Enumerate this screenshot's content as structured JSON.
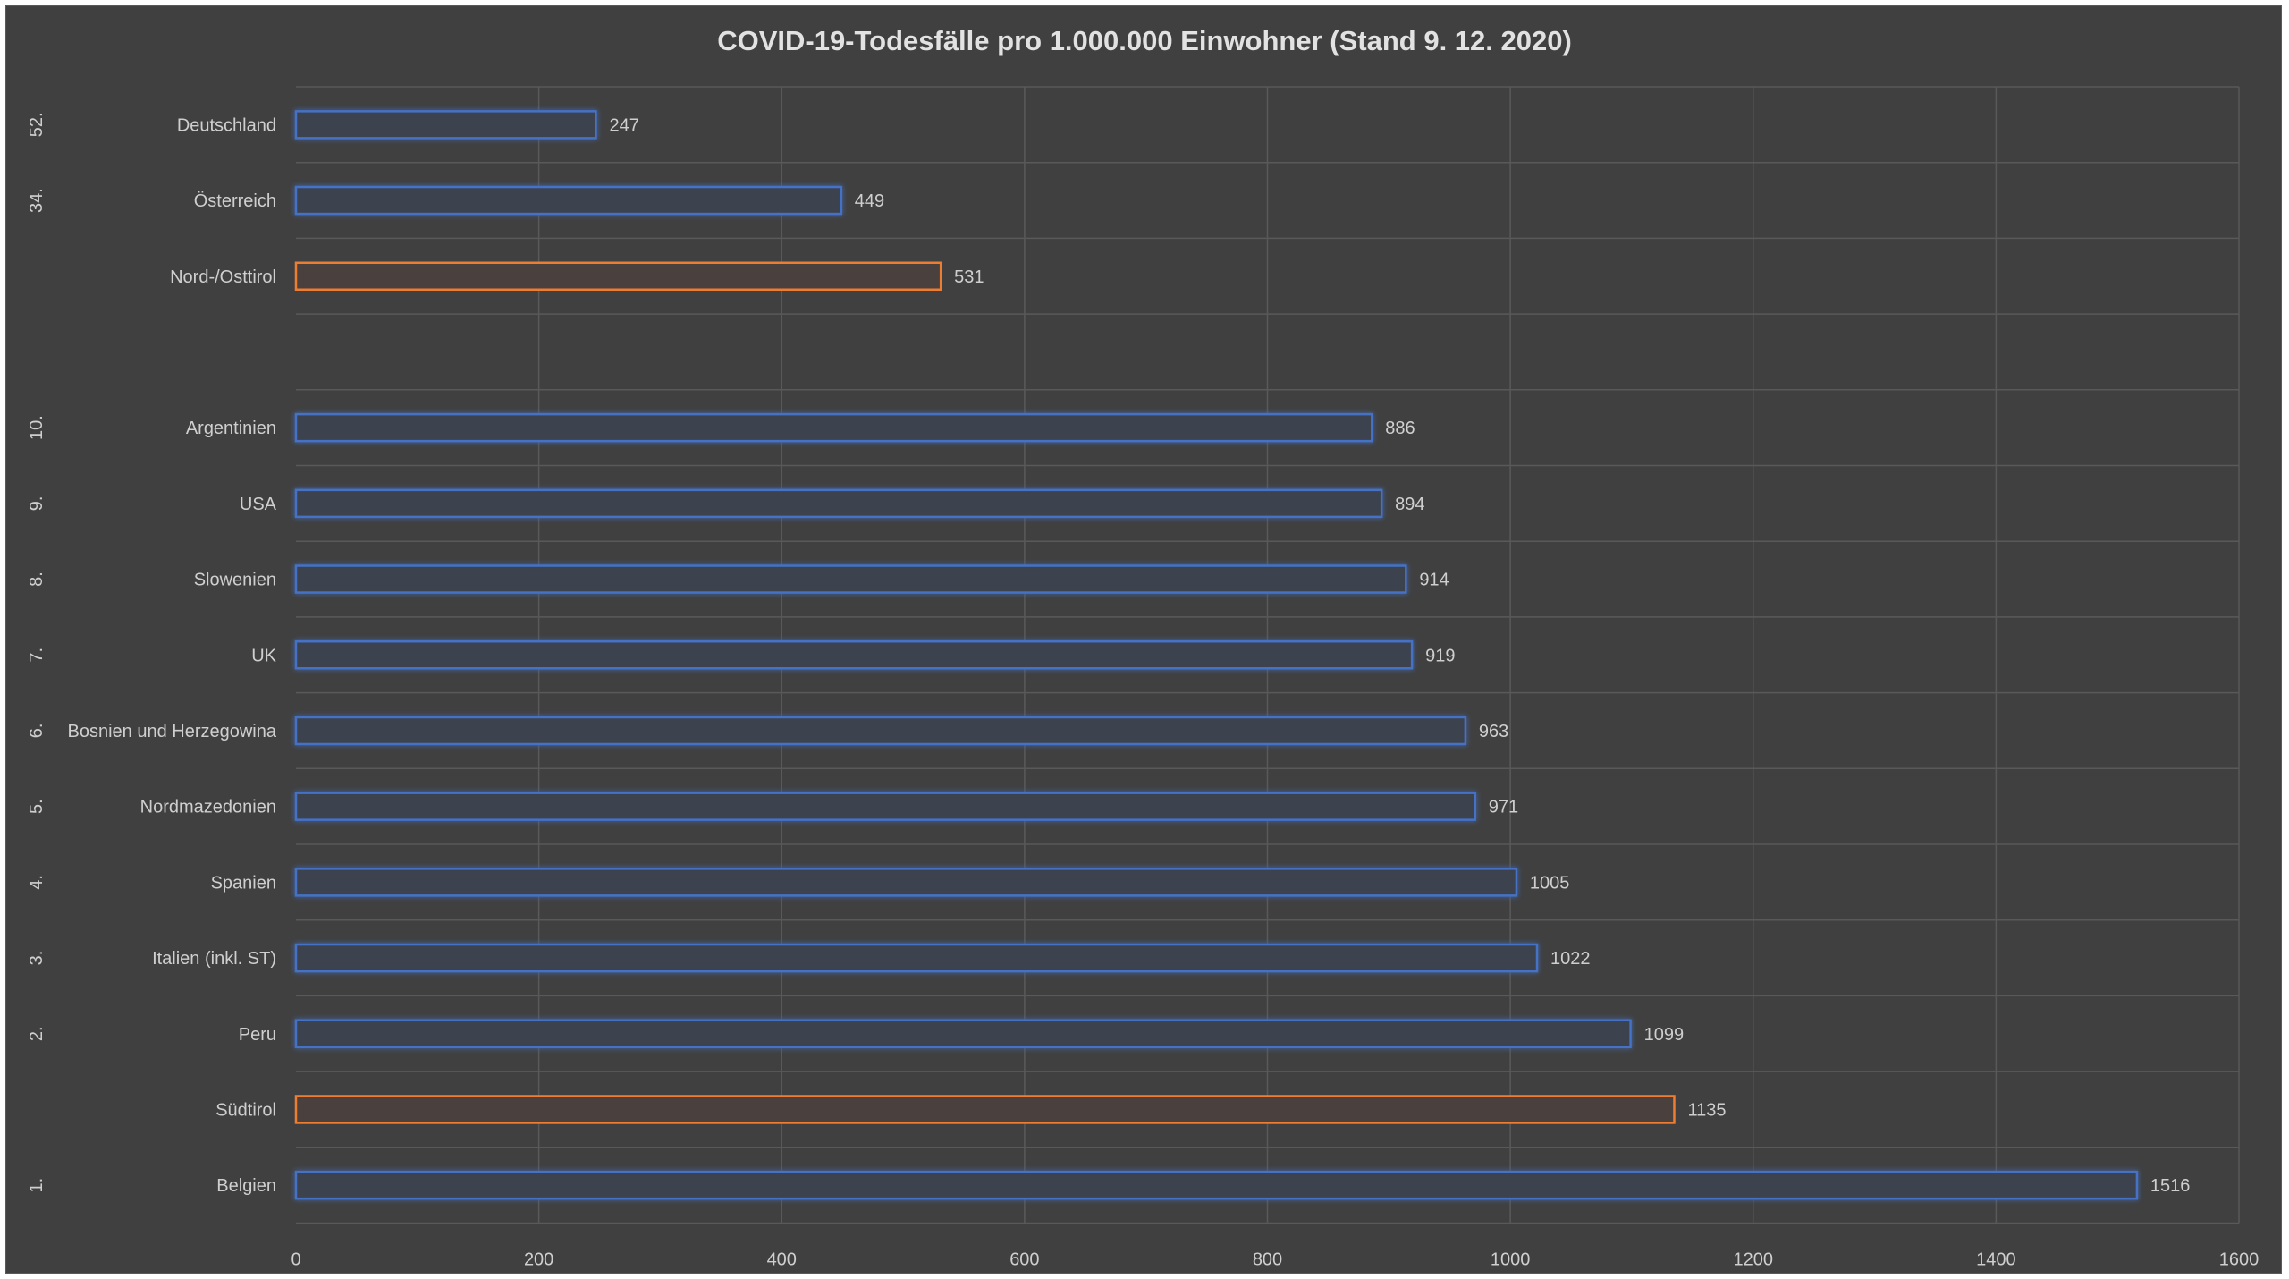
{
  "chart_data": {
    "type": "bar",
    "orientation": "horizontal",
    "title": "COVID-19-Todesfälle pro 1.000.000 Einwohner (Stand 9. 12. 2020)",
    "xlabel": "",
    "ylabel": "",
    "xlim": [
      0,
      1600
    ],
    "xticks": [
      0,
      200,
      400,
      600,
      800,
      1000,
      1200,
      1400,
      1600
    ],
    "grid": true,
    "legend": "none",
    "rows": [
      {
        "rank": "52.",
        "category": "Deutschland",
        "value": 247,
        "value_label": "247",
        "color": "#4472c4"
      },
      {
        "rank": "34.",
        "category": "Österreich",
        "value": 449,
        "value_label": "449",
        "color": "#4472c4"
      },
      {
        "rank": "",
        "category": "Nord-/Osttirol",
        "value": 531,
        "value_label": "531",
        "color": "#ed7d31"
      },
      {
        "rank": "",
        "category": "",
        "value": null,
        "value_label": "",
        "color": ""
      },
      {
        "rank": "10.",
        "category": "Argentinien",
        "value": 886,
        "value_label": "886",
        "color": "#4472c4"
      },
      {
        "rank": "9.",
        "category": "USA",
        "value": 894,
        "value_label": "894",
        "color": "#4472c4"
      },
      {
        "rank": "8.",
        "category": "Slowenien",
        "value": 914,
        "value_label": "914",
        "color": "#4472c4"
      },
      {
        "rank": "7.",
        "category": "UK",
        "value": 919,
        "value_label": "919",
        "color": "#4472c4"
      },
      {
        "rank": "6.",
        "category": "Bosnien und Herzegowina",
        "value": 963,
        "value_label": "963",
        "color": "#4472c4"
      },
      {
        "rank": "5.",
        "category": "Nordmazedonien",
        "value": 971,
        "value_label": "971",
        "color": "#4472c4"
      },
      {
        "rank": "4.",
        "category": "Spanien",
        "value": 1005,
        "value_label": "1005",
        "color": "#4472c4"
      },
      {
        "rank": "3.",
        "category": "Italien (inkl. ST)",
        "value": 1022,
        "value_label": "1022",
        "color": "#4472c4"
      },
      {
        "rank": "2.",
        "category": "Peru",
        "value": 1099,
        "value_label": "1099",
        "color": "#4472c4"
      },
      {
        "rank": "",
        "category": "Südtirol",
        "value": 1135,
        "value_label": "1135",
        "color": "#ed7d31"
      },
      {
        "rank": "1.",
        "category": "Belgien",
        "value": 1516,
        "value_label": "1516",
        "color": "#4472c4"
      }
    ]
  }
}
